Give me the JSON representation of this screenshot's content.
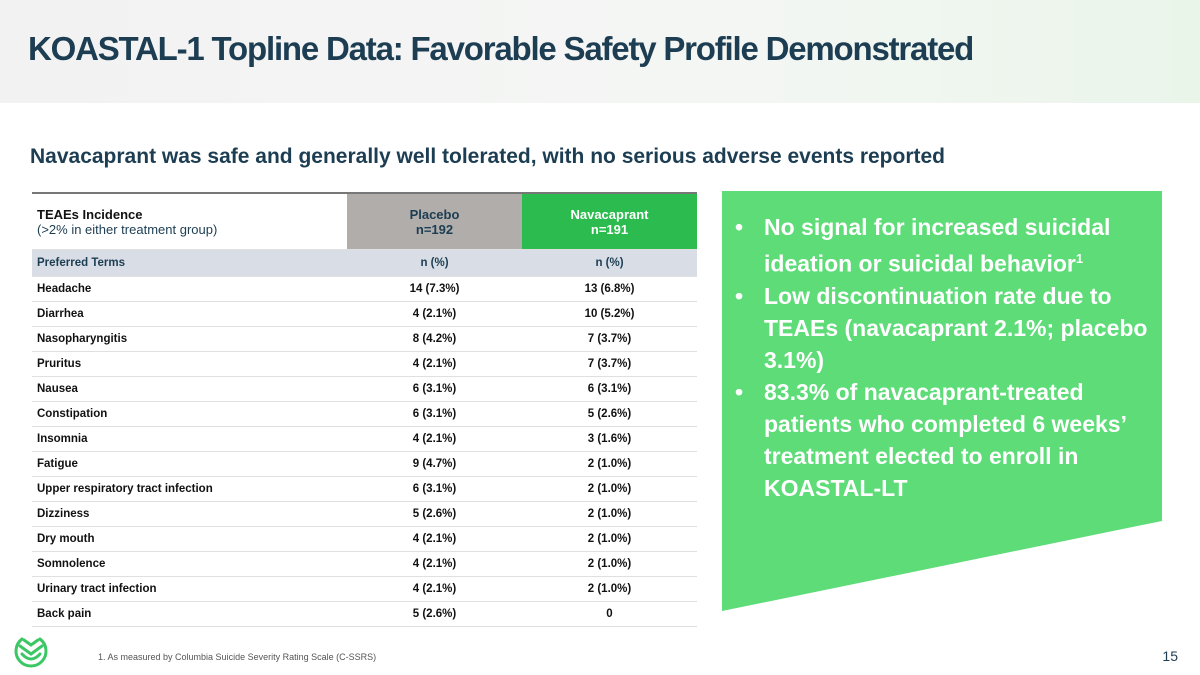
{
  "title": "KOASTAL-1 Topline Data: Favorable Safety Profile Demonstrated",
  "subtitle": "Navacaprant was safe and generally well tolerated, with no serious adverse events reported",
  "table": {
    "header": {
      "label": "TEAEs Incidence",
      "sublabel": "(>2% in either treatment group)",
      "placebo": "Placebo",
      "placebo_n": "n=192",
      "nav": "Navacaprant",
      "nav_n": "n=191"
    },
    "subheader": {
      "label": "Preferred Terms",
      "placebo": "n (%)",
      "nav": "n (%)"
    },
    "rows": [
      {
        "term": "Headache",
        "placebo": "14 (7.3%)",
        "nav": "13 (6.8%)"
      },
      {
        "term": "Diarrhea",
        "placebo": "4 (2.1%)",
        "nav": "10 (5.2%)"
      },
      {
        "term": "Nasopharyngitis",
        "placebo": "8 (4.2%)",
        "nav": "7 (3.7%)"
      },
      {
        "term": "Pruritus",
        "placebo": "4 (2.1%)",
        "nav": "7 (3.7%)"
      },
      {
        "term": "Nausea",
        "placebo": "6 (3.1%)",
        "nav": "6 (3.1%)"
      },
      {
        "term": "Constipation",
        "placebo": "6 (3.1%)",
        "nav": "5 (2.6%)"
      },
      {
        "term": "Insomnia",
        "placebo": "4 (2.1%)",
        "nav": "3 (1.6%)"
      },
      {
        "term": "Fatigue",
        "placebo": "9 (4.7%)",
        "nav": "2 (1.0%)"
      },
      {
        "term": "Upper respiratory tract infection",
        "placebo": "6 (3.1%)",
        "nav": "2 (1.0%)"
      },
      {
        "term": "Dizziness",
        "placebo": "5 (2.6%)",
        "nav": "2 (1.0%)"
      },
      {
        "term": "Dry mouth",
        "placebo": "4 (2.1%)",
        "nav": "2 (1.0%)"
      },
      {
        "term": "Somnolence",
        "placebo": "4 (2.1%)",
        "nav": "2 (1.0%)"
      },
      {
        "term": "Urinary tract infection",
        "placebo": "4 (2.1%)",
        "nav": "2 (1.0%)"
      },
      {
        "term": "Back pain",
        "placebo": "5 (2.6%)",
        "nav": "0"
      }
    ]
  },
  "bullets": [
    {
      "text": "No signal for increased suicidal ideation or suicidal behavior",
      "sup": "1"
    },
    {
      "text": "Low discontinuation rate due to TEAEs (navacaprant 2.1%; placebo 3.1%)"
    },
    {
      "text": "83.3% of navacaprant-treated patients who completed 6 weeks’ treatment elected to enroll in KOASTAL-LT"
    }
  ],
  "footnote": "1. As measured by Columbia Suicide Severity Rating Scale (C-SSRS)",
  "page_number": "15",
  "colors": {
    "title": "#1c3d52",
    "placebo": "#b0adab",
    "navacaprant": "#2bbb4e",
    "panel": "#5ddc78"
  }
}
